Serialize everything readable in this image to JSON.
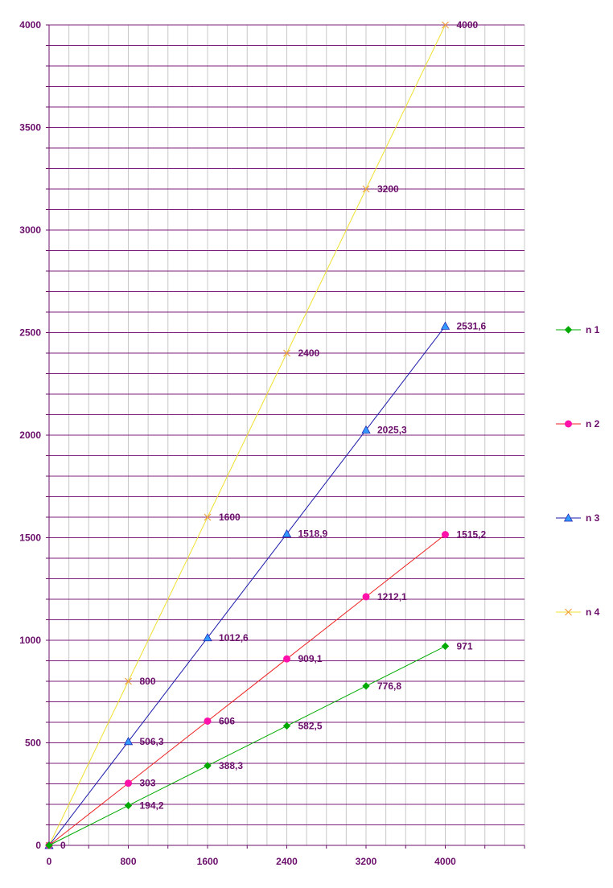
{
  "chart_data": {
    "type": "line",
    "title": "",
    "xlabel": "",
    "ylabel": "",
    "xlim": [
      0,
      4800
    ],
    "ylim": [
      0,
      4000
    ],
    "x_ticks": [
      "0",
      "800",
      "1600",
      "2400",
      "3200",
      "4000"
    ],
    "y_ticks": [
      "0",
      "500",
      "1000",
      "1500",
      "2000",
      "2500",
      "3000",
      "3500",
      "4000"
    ],
    "x_tick_values": [
      0,
      800,
      1600,
      2400,
      3200,
      4000
    ],
    "y_tick_values": [
      0,
      500,
      1000,
      1500,
      2000,
      2500,
      3000,
      3500,
      4000
    ],
    "grid": true,
    "legend_position": "right",
    "colors": {
      "axis": "#6b0f6b",
      "grid_h": "#7a1f7a",
      "grid_v": "#c8c8c8"
    },
    "series": [
      {
        "name": "n 1",
        "color": "#00aa00",
        "marker": "diamond",
        "x": [
          0,
          800,
          1600,
          2400,
          3200,
          4000
        ],
        "values": [
          0,
          194.2,
          388.3,
          582.5,
          776.8,
          971
        ],
        "labels": [
          "0",
          "194,2",
          "388,3",
          "582,5",
          "776,8",
          "971"
        ]
      },
      {
        "name": "n 2",
        "color": "#ee2222",
        "marker_color": "#ff11aa",
        "marker": "circle",
        "x": [
          0,
          800,
          1600,
          2400,
          3200,
          4000
        ],
        "values": [
          0,
          303,
          606,
          909.1,
          1212.1,
          1515.2
        ],
        "labels": [
          "",
          "303",
          "606",
          "909,1",
          "1212,1",
          "1515,2"
        ]
      },
      {
        "name": "n 3",
        "color": "#1a1aaa",
        "marker_color": "#3399ff",
        "marker": "triangle",
        "x": [
          0,
          800,
          1600,
          2400,
          3200,
          4000
        ],
        "values": [
          0,
          506.3,
          1012.6,
          1518.9,
          2025.3,
          2531.6
        ],
        "labels": [
          "",
          "506,3",
          "1012,6",
          "1518,9",
          "2025,3",
          "2531,6"
        ]
      },
      {
        "name": "n 4",
        "color": "#f0e030",
        "marker_color": "#f0a040",
        "marker": "cross",
        "x": [
          0,
          800,
          1600,
          2400,
          3200,
          4000
        ],
        "values": [
          0,
          800,
          1600,
          2400,
          3200,
          4000
        ],
        "labels": [
          "",
          "800",
          "1600",
          "2400",
          "3200",
          "4000"
        ]
      }
    ]
  }
}
